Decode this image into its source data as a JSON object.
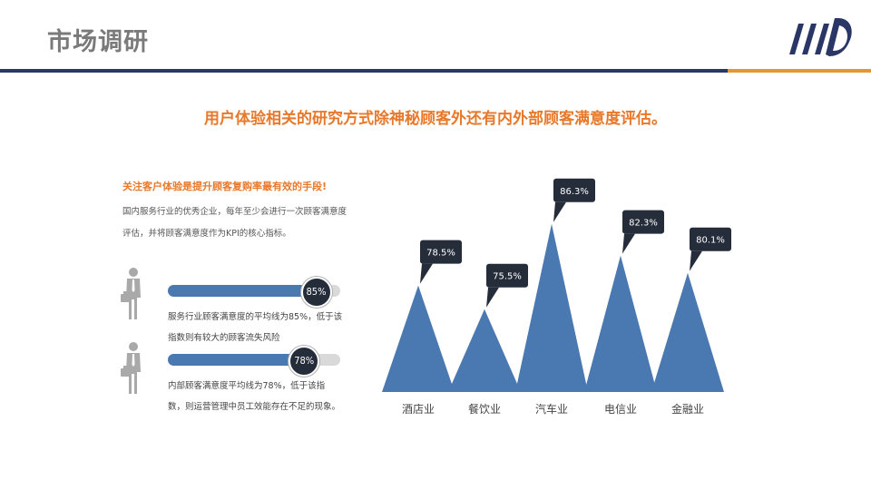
{
  "page_title": "市场调研",
  "headline": "用户体验相关的研究方式除神秘顾客外还有内外部顾客满意度评估。",
  "sub_heading": "关注客户体验是提升顾客复购率最有效的手段!",
  "intro_lines": [
    "国内服务行业的优秀企业，每年至少会进行一次顾客满意度",
    "评估，并将顾客满意度作为KPI的核心指标。"
  ],
  "stats": [
    {
      "label": "85%",
      "value": 85,
      "lines": [
        "服务行业顾客满意度的平均线为85%，低于该",
        "指数则有较大的顾客流失风险"
      ]
    },
    {
      "label": "78%",
      "value": 78,
      "lines": [
        "内部顾客满意度平均线为78%，低于该指",
        "数，则运营管理中员工效能存在不足的现象。"
      ]
    }
  ],
  "colors": {
    "title_gray": "#7a7a7a",
    "accent_orange": "#e8782a",
    "rule_blue": "#2a3766",
    "rule_orange": "#e0982f",
    "mark_blue": "#4a78b0",
    "callout_dark": "#252c3a"
  },
  "icons": {
    "logo": "striped-d-logo-icon",
    "person": "businessman-with-briefcase-icon"
  },
  "chart_data": {
    "type": "bar",
    "mark_shape": "triangle",
    "categories": [
      "酒店业",
      "餐饮业",
      "汽车业",
      "电信业",
      "金融业"
    ],
    "values": [
      78.5,
      75.5,
      86.3,
      82.3,
      80.1
    ],
    "value_labels": [
      "78.5%",
      "75.5%",
      "86.3%",
      "82.3%",
      "80.1%"
    ],
    "ylim": [
      65,
      88
    ],
    "grid": false,
    "legend": "none"
  }
}
